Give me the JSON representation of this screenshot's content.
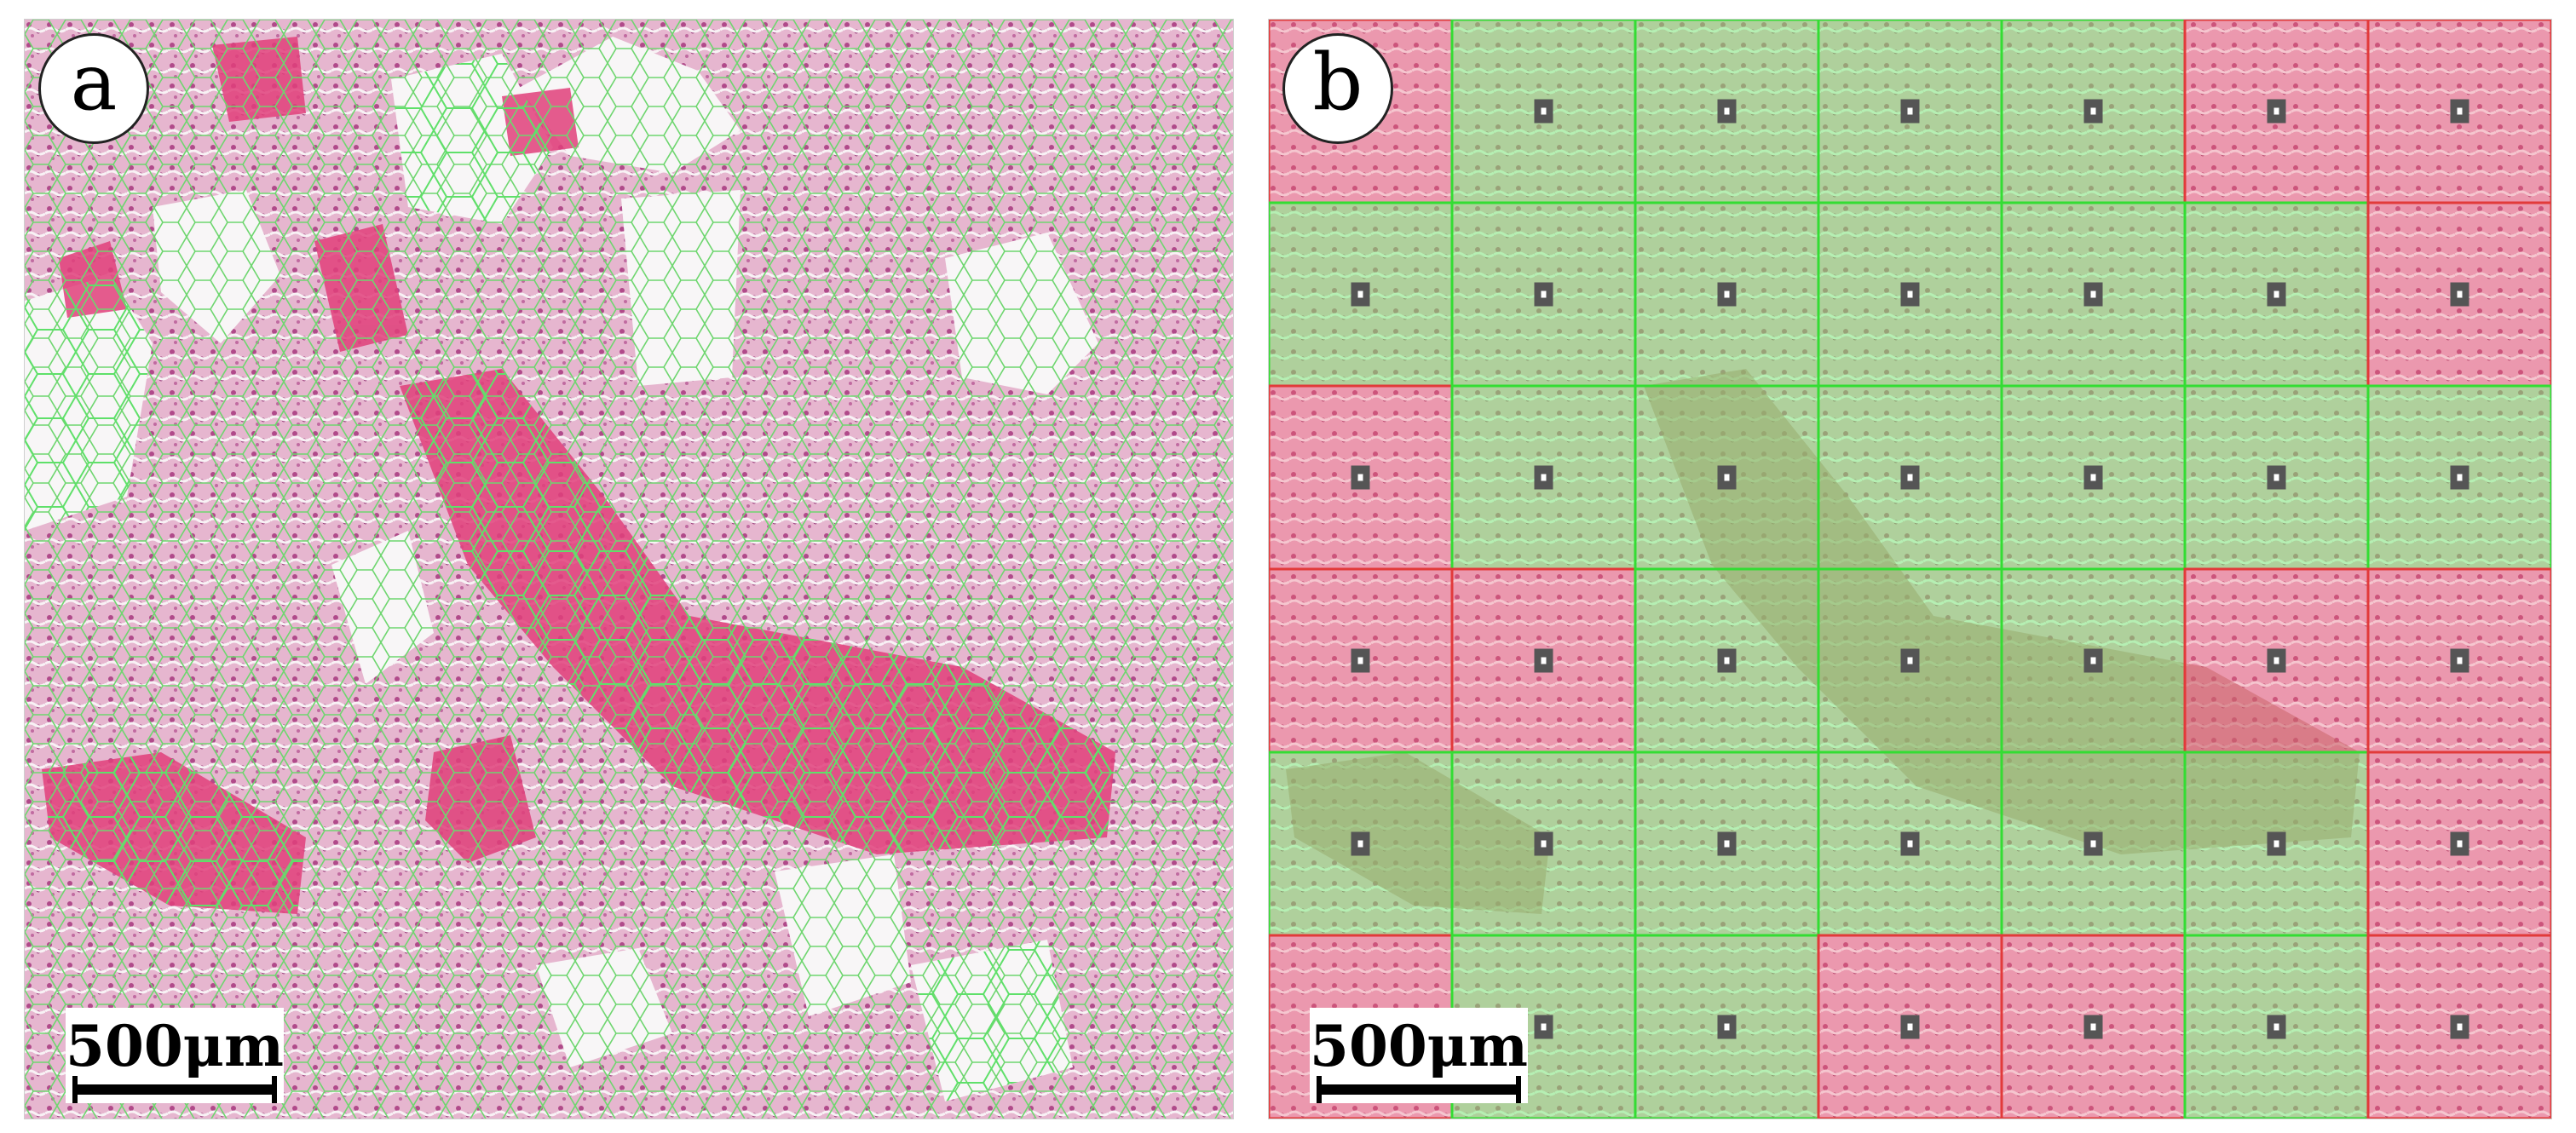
{
  "panels": [
    {
      "id": "a",
      "label": "a",
      "scale_bar": "500μm",
      "description_type": "superpixel segmentation"
    },
    {
      "id": "b",
      "label": "b",
      "scale_bar": "500μm",
      "description_type": "patch classification grid"
    }
  ],
  "colors": {
    "tissue_pink": "#d86a9a",
    "vessel_red": "#e0407a",
    "background_white": "#f6f3f5",
    "superpixel_line": "#5fe06a",
    "patch_green": "#7ff07f",
    "patch_red": "#f07a8f",
    "grid_green": "#33dd33",
    "grid_red": "#e23a3a",
    "marker": "#555555"
  },
  "patch_grid": {
    "rows": 6,
    "cols": 7,
    "labels": [
      [
        "red",
        "green",
        "green",
        "green",
        "green",
        "red",
        "red"
      ],
      [
        "green",
        "green",
        "green",
        "green",
        "green",
        "green",
        "red"
      ],
      [
        "red",
        "green",
        "green",
        "green",
        "green",
        "green",
        "green"
      ],
      [
        "red",
        "red",
        "green",
        "green",
        "green",
        "red",
        "red"
      ],
      [
        "green",
        "green",
        "green",
        "green",
        "green",
        "green",
        "red"
      ],
      [
        "red",
        "green",
        "green",
        "red",
        "red",
        "green",
        "red"
      ]
    ]
  }
}
